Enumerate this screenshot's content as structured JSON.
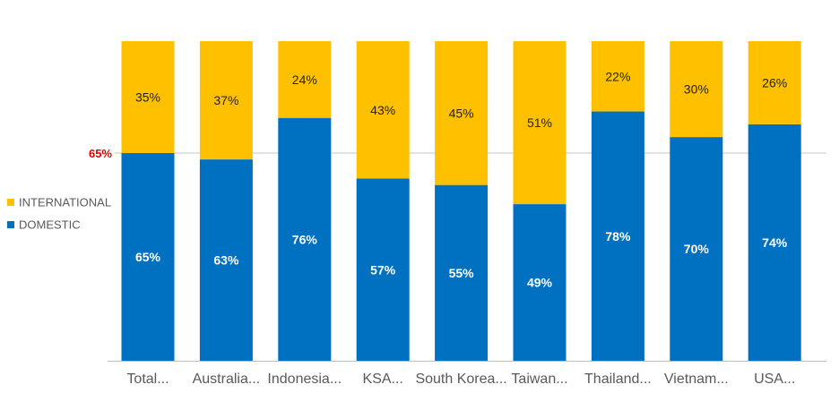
{
  "chart_data": {
    "type": "bar",
    "stacked": true,
    "normalized": true,
    "categories": [
      "Total...",
      "Australia...",
      "Indonesia...",
      "KSA...",
      "South Korea...",
      "Taiwan...",
      "Thailand...",
      "Vietnam...",
      "USA..."
    ],
    "series": [
      {
        "name": "DOMESTIC",
        "values": [
          65,
          63,
          76,
          57,
          55,
          49,
          78,
          70,
          74
        ],
        "color": "#0070C0",
        "labels": [
          "65%",
          "63%",
          "76%",
          "57%",
          "55%",
          "49%",
          "78%",
          "70%",
          "74%"
        ]
      },
      {
        "name": "INTERNATIONAL",
        "values": [
          35,
          37,
          24,
          43,
          45,
          51,
          22,
          30,
          26
        ],
        "color": "#FFC000",
        "labels": [
          "35%",
          "37%",
          "24%",
          "43%",
          "45%",
          "51%",
          "22%",
          "30%",
          "26%"
        ]
      }
    ],
    "reference_line": {
      "value": 65,
      "label": "65%",
      "label_color": "#E00000",
      "line_color": "#D9D9D9"
    },
    "ylim": [
      0,
      100
    ],
    "legend": {
      "placement": "left",
      "items": [
        "INTERNATIONAL",
        "DOMESTIC"
      ]
    },
    "grid": false
  }
}
